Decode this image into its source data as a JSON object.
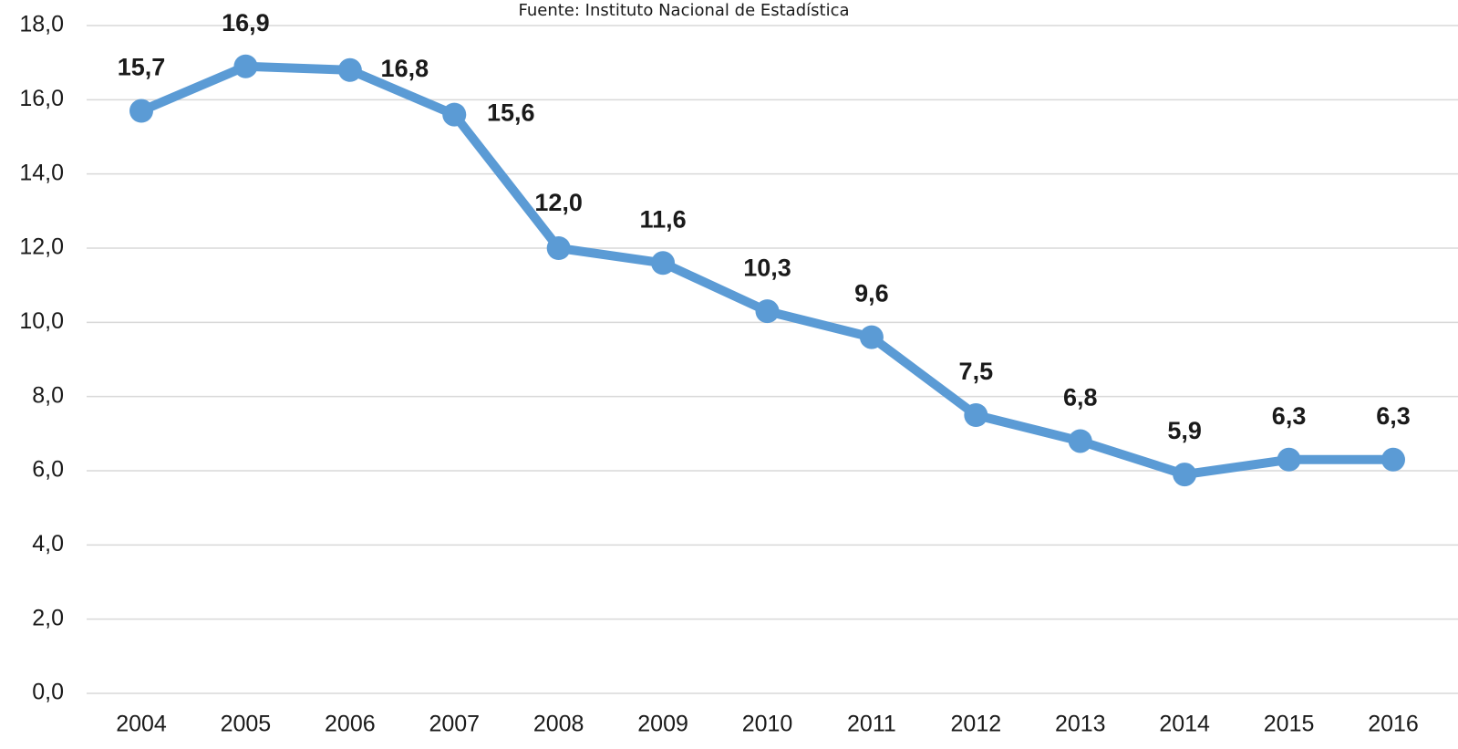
{
  "chart_data": {
    "type": "line",
    "subtitle": "Fuente: Instituto Nacional de Estadística",
    "categories": [
      "2004",
      "2005",
      "2006",
      "2007",
      "2008",
      "2009",
      "2010",
      "2011",
      "2012",
      "2013",
      "2014",
      "2015",
      "2016"
    ],
    "values": [
      15.7,
      16.9,
      16.8,
      15.6,
      12.0,
      11.6,
      10.3,
      9.6,
      7.5,
      6.8,
      5.9,
      6.3,
      6.3
    ],
    "value_labels": [
      "15,7",
      "16,9",
      "16,8",
      "15,6",
      "12,0",
      "11,6",
      "10,3",
      "9,6",
      "7,5",
      "6,8",
      "5,9",
      "6,3",
      "6,3"
    ],
    "color": "#5b9bd5",
    "ylim": [
      0,
      18
    ],
    "yticks": [
      {
        "value": 0,
        "label": "0,0"
      },
      {
        "value": 2,
        "label": "2,0"
      },
      {
        "value": 4,
        "label": "4,0"
      },
      {
        "value": 6,
        "label": "6,0"
      },
      {
        "value": 8,
        "label": "8,0"
      },
      {
        "value": 10,
        "label": "10,0"
      },
      {
        "value": 12,
        "label": "12,0"
      },
      {
        "value": 14,
        "label": "14,0"
      },
      {
        "value": 16,
        "label": "16,0"
      },
      {
        "value": 18,
        "label": "18,0"
      }
    ],
    "grid": true
  }
}
